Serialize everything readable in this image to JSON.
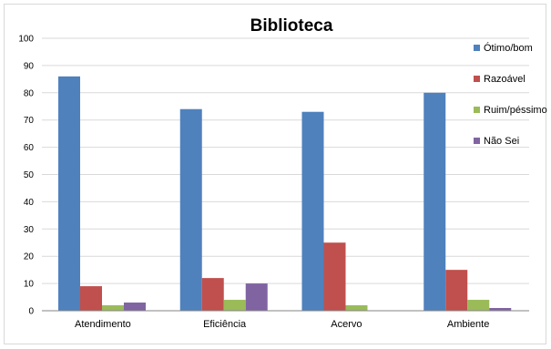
{
  "chart_data": {
    "type": "bar",
    "title": "Biblioteca",
    "xlabel": "",
    "ylabel": "",
    "ylim": [
      0,
      100
    ],
    "yticks": [
      0,
      10,
      20,
      30,
      40,
      50,
      60,
      70,
      80,
      90,
      100
    ],
    "grid": true,
    "legend_position": "right",
    "categories": [
      "Atendimento",
      "Eficiência",
      "Acervo",
      "Ambiente"
    ],
    "series": [
      {
        "name": "Ótimo/bom",
        "color": "#4f81bd",
        "values": [
          86,
          74,
          73,
          80
        ]
      },
      {
        "name": "Razoável",
        "color": "#c0504d",
        "values": [
          9,
          12,
          25,
          15
        ]
      },
      {
        "name": "Ruim/péssimo",
        "color": "#9bbb59",
        "values": [
          2,
          4,
          2,
          4
        ]
      },
      {
        "name": "Não Sei",
        "color": "#8064a2",
        "values": [
          3,
          10,
          0,
          1
        ]
      }
    ]
  }
}
